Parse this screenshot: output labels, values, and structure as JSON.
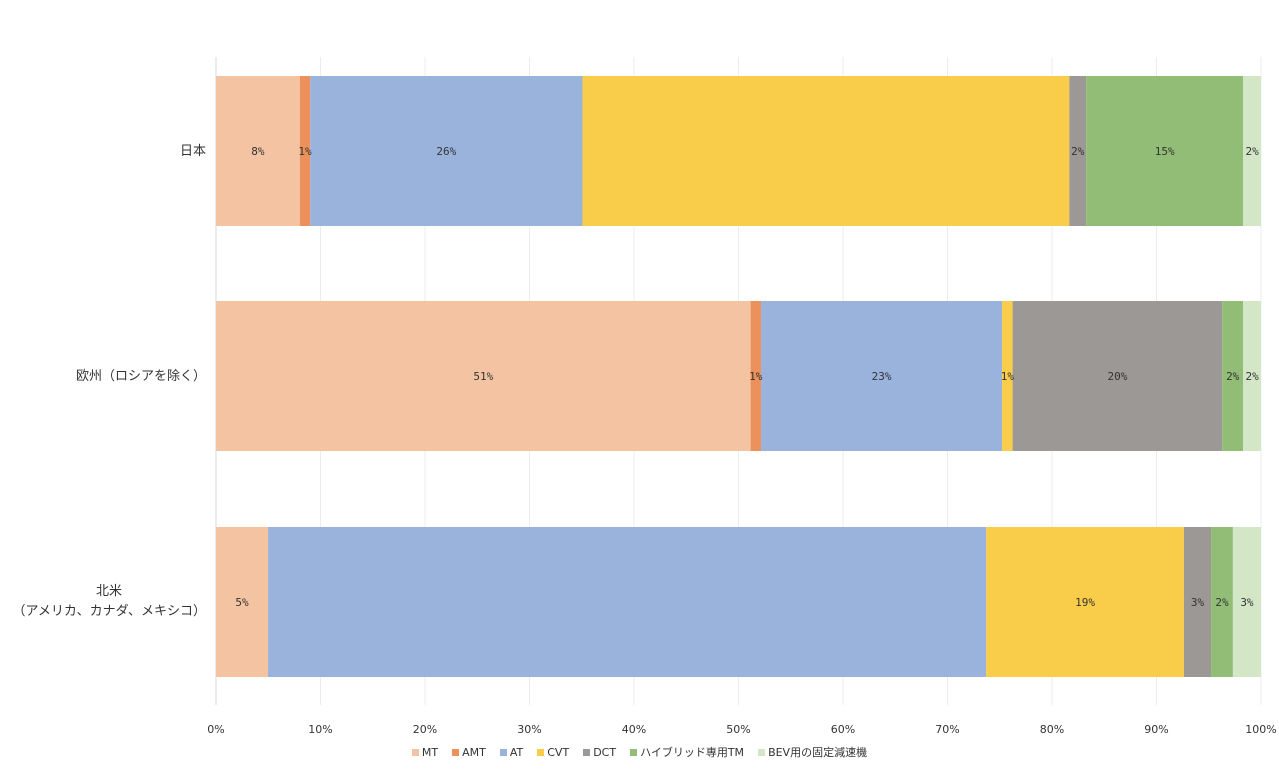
{
  "chart_data": {
    "type": "bar",
    "orientation": "horizontal",
    "stacked": true,
    "normalized": true,
    "title": "",
    "xlabel": "",
    "ylabel": "",
    "xlim": [
      0,
      100
    ],
    "x_ticks": [
      "0%",
      "10%",
      "20%",
      "30%",
      "40%",
      "50%",
      "60%",
      "70%",
      "80%",
      "90%",
      "100%"
    ],
    "grid": true,
    "legend_position": "bottom",
    "categories": [
      {
        "label": "日本"
      },
      {
        "label": "欧州（ロシアを除く）"
      },
      {
        "label": "北米",
        "label2": "（アメリカ、カナダ、メキシコ）"
      }
    ],
    "series": [
      {
        "name": "MT",
        "color": "#f4c4a2",
        "values": [
          8,
          51,
          5
        ],
        "labels": [
          "8%",
          "51%",
          "5%"
        ]
      },
      {
        "name": "AMT",
        "color": "#ed915c",
        "values": [
          1,
          1,
          0
        ],
        "labels": [
          "1%",
          "1%",
          ""
        ]
      },
      {
        "name": "AT",
        "color": "#99b3dc",
        "values": [
          26,
          23,
          69
        ],
        "labels": [
          "26%",
          "23%",
          ""
        ]
      },
      {
        "name": "CVT",
        "color": "#f9cd4a",
        "values": [
          46.5,
          1,
          19
        ],
        "labels": [
          "",
          "1%",
          "19%"
        ]
      },
      {
        "name": "DCT",
        "color": "#9c9896",
        "values": [
          1.6,
          20,
          2.6
        ],
        "labels": [
          "2%",
          "20%",
          "3%"
        ]
      },
      {
        "name": "ハイブリッド専用TM",
        "color": "#91bd76",
        "values": [
          15,
          2,
          2.1
        ],
        "labels": [
          "15%",
          "2%",
          "2%"
        ]
      },
      {
        "name": "BEV用の固定減速機",
        "color": "#d3e7c6",
        "values": [
          1.7,
          1.7,
          2.7
        ],
        "labels": [
          "2%",
          "2%",
          "3%"
        ]
      }
    ]
  }
}
